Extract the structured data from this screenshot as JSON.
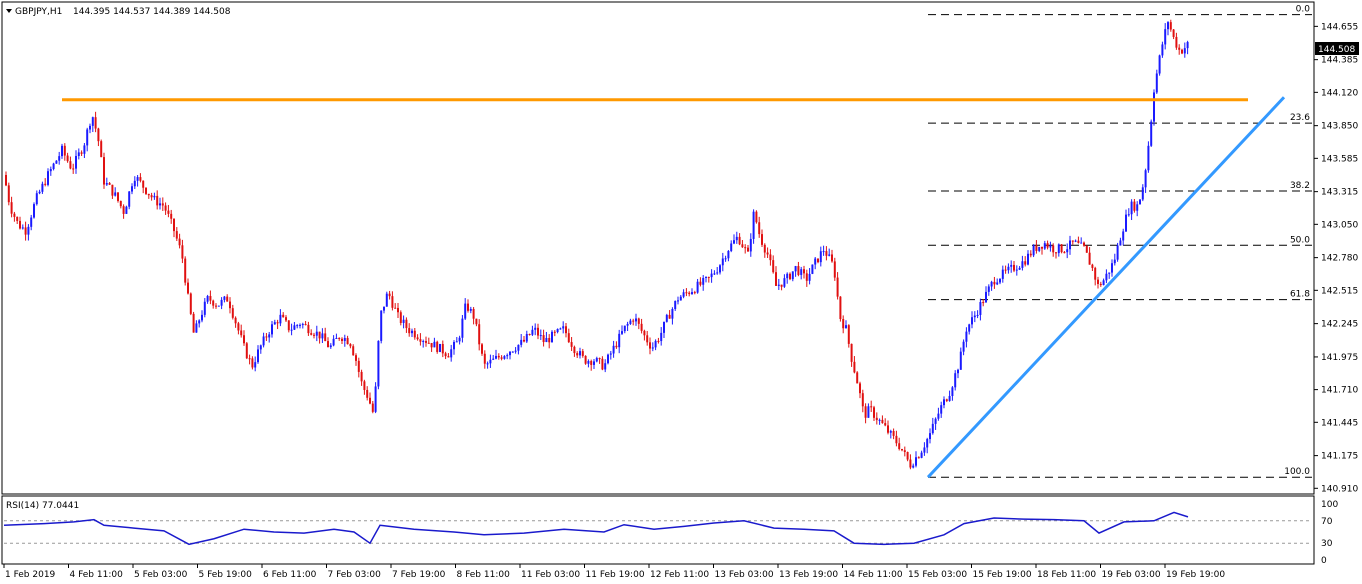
{
  "header": {
    "symbol": "GBPJPY,H1",
    "ohlc": "144.395 144.537 144.389 144.508"
  },
  "colors": {
    "bull": "#1a1aff",
    "bear": "#e01010",
    "resistance": "#ff9900",
    "trendline": "#3399ff",
    "rsi": "#1a1acc",
    "fib": "#000000"
  },
  "chart_data": [
    {
      "type": "candlestick",
      "title": "",
      "price_axis": {
        "ticks": [
          "144.655",
          "144.385",
          "144.120",
          "143.850",
          "143.585",
          "143.315",
          "143.050",
          "142.780",
          "142.515",
          "142.245",
          "141.975",
          "141.710",
          "141.445",
          "141.175",
          "140.910"
        ],
        "ylim": [
          140.88,
          144.82
        ]
      },
      "last_price_label": "144.508",
      "time_labels": [
        "1 Feb 2019",
        "4 Feb 11:00",
        "5 Feb 03:00",
        "5 Feb 19:00",
        "6 Feb 11:00",
        "7 Feb 03:00",
        "7 Feb 19:00",
        "8 Feb 11:00",
        "11 Feb 03:00",
        "11 Feb 19:00",
        "12 Feb 11:00",
        "13 Feb 03:00",
        "13 Feb 19:00",
        "14 Feb 11:00",
        "15 Feb 03:00",
        "15 Feb 19:00",
        "18 Feb 11:00",
        "19 Feb 03:00",
        "19 Feb 19:00"
      ],
      "path": [
        [
          0,
          143.45
        ],
        [
          6,
          143.2
        ],
        [
          14,
          143.05
        ],
        [
          22,
          143.0
        ],
        [
          32,
          143.25
        ],
        [
          44,
          143.45
        ],
        [
          58,
          143.65
        ],
        [
          68,
          143.5
        ],
        [
          80,
          143.7
        ],
        [
          88,
          143.95
        ],
        [
          94,
          143.75
        ],
        [
          100,
          143.4
        ],
        [
          110,
          143.3
        ],
        [
          120,
          143.15
        ],
        [
          130,
          143.45
        ],
        [
          140,
          143.35
        ],
        [
          150,
          143.25
        ],
        [
          160,
          143.2
        ],
        [
          170,
          143.0
        ],
        [
          178,
          142.8
        ],
        [
          184,
          142.45
        ],
        [
          190,
          142.15
        ],
        [
          196,
          142.3
        ],
        [
          204,
          142.45
        ],
        [
          214,
          142.4
        ],
        [
          224,
          142.45
        ],
        [
          232,
          142.25
        ],
        [
          240,
          142.05
        ],
        [
          248,
          141.9
        ],
        [
          256,
          142.05
        ],
        [
          266,
          142.2
        ],
        [
          276,
          142.3
        ],
        [
          286,
          142.2
        ],
        [
          296,
          142.25
        ],
        [
          306,
          142.2
        ],
        [
          316,
          142.15
        ],
        [
          326,
          142.05
        ],
        [
          336,
          142.15
        ],
        [
          346,
          142.1
        ],
        [
          352,
          141.95
        ],
        [
          358,
          141.75
        ],
        [
          364,
          141.65
        ],
        [
          370,
          141.5
        ],
        [
          376,
          142.3
        ],
        [
          384,
          142.5
        ],
        [
          394,
          142.3
        ],
        [
          404,
          142.2
        ],
        [
          414,
          142.15
        ],
        [
          424,
          142.1
        ],
        [
          434,
          142.05
        ],
        [
          444,
          142.0
        ],
        [
          454,
          142.1
        ],
        [
          462,
          142.4
        ],
        [
          470,
          142.3
        ],
        [
          480,
          141.9
        ],
        [
          490,
          141.95
        ],
        [
          500,
          142.0
        ],
        [
          510,
          142.05
        ],
        [
          520,
          142.1
        ],
        [
          530,
          142.2
        ],
        [
          540,
          142.1
        ],
        [
          550,
          142.15
        ],
        [
          560,
          142.2
        ],
        [
          570,
          142.05
        ],
        [
          580,
          141.95
        ],
        [
          590,
          141.95
        ],
        [
          600,
          141.9
        ],
        [
          610,
          142.05
        ],
        [
          620,
          142.2
        ],
        [
          630,
          142.3
        ],
        [
          640,
          142.15
        ],
        [
          648,
          142.05
        ],
        [
          656,
          142.15
        ],
        [
          664,
          142.3
        ],
        [
          674,
          142.45
        ],
        [
          684,
          142.5
        ],
        [
          694,
          142.55
        ],
        [
          704,
          142.6
        ],
        [
          714,
          142.7
        ],
        [
          724,
          142.85
        ],
        [
          734,
          142.95
        ],
        [
          744,
          142.8
        ],
        [
          750,
          143.15
        ],
        [
          756,
          142.95
        ],
        [
          764,
          142.8
        ],
        [
          772,
          142.55
        ],
        [
          782,
          142.6
        ],
        [
          792,
          142.7
        ],
        [
          802,
          142.6
        ],
        [
          812,
          142.75
        ],
        [
          820,
          142.85
        ],
        [
          830,
          142.7
        ],
        [
          836,
          142.3
        ],
        [
          842,
          142.2
        ],
        [
          848,
          141.95
        ],
        [
          854,
          141.75
        ],
        [
          860,
          141.5
        ],
        [
          866,
          141.55
        ],
        [
          876,
          141.45
        ],
        [
          886,
          141.35
        ],
        [
          896,
          141.25
        ],
        [
          906,
          141.1
        ],
        [
          916,
          141.2
        ],
        [
          926,
          141.35
        ],
        [
          936,
          141.55
        ],
        [
          946,
          141.7
        ],
        [
          956,
          141.95
        ],
        [
          962,
          142.2
        ],
        [
          970,
          142.3
        ],
        [
          980,
          142.45
        ],
        [
          990,
          142.6
        ],
        [
          1000,
          142.65
        ],
        [
          1010,
          142.7
        ],
        [
          1020,
          142.75
        ],
        [
          1030,
          142.85
        ],
        [
          1040,
          142.9
        ],
        [
          1050,
          142.85
        ],
        [
          1060,
          142.85
        ],
        [
          1070,
          142.9
        ],
        [
          1080,
          142.85
        ],
        [
          1088,
          142.7
        ],
        [
          1094,
          142.55
        ],
        [
          1100,
          142.6
        ],
        [
          1110,
          142.75
        ],
        [
          1118,
          143.0
        ],
        [
          1126,
          143.2
        ],
        [
          1134,
          143.2
        ],
        [
          1140,
          143.4
        ],
        [
          1146,
          143.8
        ],
        [
          1150,
          144.15
        ],
        [
          1158,
          144.5
        ],
        [
          1164,
          144.7
        ],
        [
          1170,
          144.55
        ],
        [
          1176,
          144.45
        ],
        [
          1184,
          144.508
        ]
      ],
      "resistance_level": 144.06,
      "fibonacci": [
        {
          "label": "0.0",
          "price": 144.75
        },
        {
          "label": "23.6",
          "price": 143.87
        },
        {
          "label": "38.2",
          "price": 143.32
        },
        {
          "label": "50.0",
          "price": 142.88
        },
        {
          "label": "61.8",
          "price": 142.44
        },
        {
          "label": "100.0",
          "price": 141.0
        }
      ],
      "trendline": {
        "from": [
          928,
          141.0
        ],
        "to": [
          1284,
          144.08
        ]
      }
    },
    {
      "type": "line",
      "indicator": "RSI(14) 77.0441",
      "y_ticks": [
        "100",
        "70",
        "30",
        "0"
      ],
      "levels": [
        70,
        30
      ],
      "ylim": [
        0,
        100
      ],
      "path": [
        [
          0,
          62
        ],
        [
          40,
          65
        ],
        [
          70,
          68
        ],
        [
          90,
          72
        ],
        [
          100,
          62
        ],
        [
          130,
          57
        ],
        [
          160,
          52
        ],
        [
          185,
          28
        ],
        [
          210,
          38
        ],
        [
          240,
          55
        ],
        [
          270,
          50
        ],
        [
          300,
          48
        ],
        [
          330,
          55
        ],
        [
          350,
          50
        ],
        [
          366,
          30
        ],
        [
          376,
          62
        ],
        [
          410,
          55
        ],
        [
          450,
          50
        ],
        [
          480,
          45
        ],
        [
          520,
          48
        ],
        [
          560,
          55
        ],
        [
          600,
          50
        ],
        [
          620,
          63
        ],
        [
          650,
          55
        ],
        [
          680,
          60
        ],
        [
          710,
          66
        ],
        [
          740,
          70
        ],
        [
          770,
          57
        ],
        [
          800,
          55
        ],
        [
          830,
          52
        ],
        [
          850,
          30
        ],
        [
          880,
          28
        ],
        [
          910,
          30
        ],
        [
          940,
          45
        ],
        [
          960,
          65
        ],
        [
          990,
          75
        ],
        [
          1020,
          73
        ],
        [
          1050,
          72
        ],
        [
          1080,
          70
        ],
        [
          1095,
          48
        ],
        [
          1120,
          68
        ],
        [
          1150,
          70
        ],
        [
          1170,
          85
        ],
        [
          1184,
          77
        ]
      ]
    }
  ]
}
